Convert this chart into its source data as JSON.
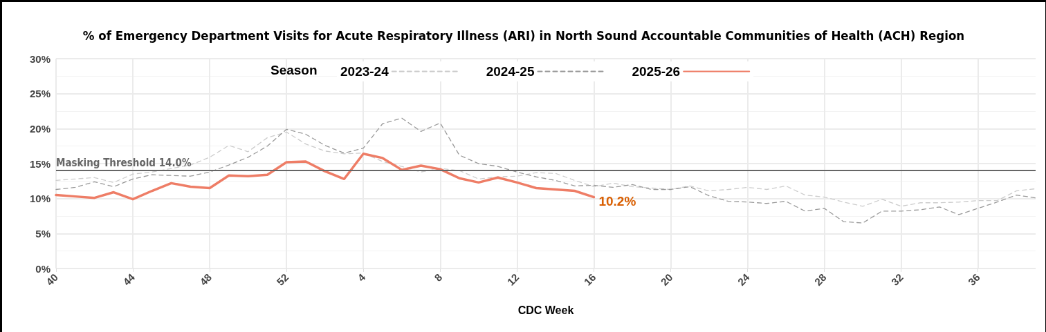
{
  "chart_data": {
    "type": "line",
    "title": "% of Emergency Department Visits for Acute Respiratory Illness (ARI) in North Sound Accountable Communities of Health (ACH) Region",
    "xlabel": "CDC Week",
    "legend_title": "Season",
    "categories": [
      "40",
      null,
      null,
      null,
      "44",
      null,
      null,
      null,
      "48",
      null,
      null,
      null,
      "52",
      null,
      null,
      null,
      "4",
      null,
      null,
      null,
      "8",
      null,
      null,
      null,
      "12",
      null,
      null,
      null,
      "16",
      null,
      null,
      null,
      "20",
      null,
      null,
      null,
      "24",
      null,
      null,
      null,
      "28",
      null,
      null,
      null,
      "32",
      null,
      null,
      null,
      "36",
      null,
      null,
      null
    ],
    "series": [
      {
        "name": "2023-24",
        "color": "#cccccc",
        "line_style": "dashed",
        "values": [
          12.6,
          12.8,
          13.0,
          12.3,
          13.5,
          13.8,
          14.3,
          14.8,
          15.9,
          17.6,
          16.7,
          18.7,
          19.5,
          17.8,
          16.8,
          16.4,
          16.5,
          15.3,
          14.6,
          13.8,
          14.3,
          14.0,
          12.8,
          13.1,
          13.2,
          13.7,
          13.6,
          12.6,
          11.7,
          12.2,
          11.7,
          11.5,
          11.3,
          11.8,
          11.1,
          11.3,
          11.6,
          11.3,
          11.8,
          10.5,
          10.2,
          9.5,
          8.9,
          9.9,
          8.9,
          9.4,
          9.4,
          9.5,
          9.7,
          9.7,
          11.1,
          11.4
        ]
      },
      {
        "name": "2024-25",
        "color": "#999999",
        "line_style": "dashed",
        "values": [
          11.3,
          11.6,
          12.4,
          11.7,
          12.8,
          13.4,
          13.3,
          13.2,
          13.8,
          14.8,
          15.9,
          17.5,
          19.9,
          19.2,
          17.6,
          16.5,
          17.2,
          20.7,
          21.5,
          19.6,
          20.8,
          16.2,
          15.0,
          14.6,
          13.8,
          13.1,
          12.6,
          11.8,
          11.9,
          11.6,
          12.0,
          11.3,
          11.3,
          11.7,
          10.4,
          9.6,
          9.5,
          9.3,
          9.6,
          8.2,
          8.6,
          6.7,
          6.5,
          8.2,
          8.2,
          8.4,
          8.8,
          7.7,
          8.6,
          9.5,
          10.5,
          10.1
        ]
      },
      {
        "name": "2025-26",
        "color": "#ee7d66",
        "line_style": "solid",
        "values": [
          10.5,
          10.3,
          10.1,
          10.9,
          9.9,
          11.1,
          12.2,
          11.7,
          11.5,
          13.3,
          13.2,
          13.4,
          15.2,
          15.3,
          13.9,
          12.8,
          16.4,
          15.8,
          14.1,
          14.7,
          14.2,
          12.9,
          12.3,
          13.0,
          12.3,
          11.5,
          11.3,
          11.1,
          10.2,
          null,
          null,
          null,
          null,
          null,
          null,
          null,
          null,
          null,
          null,
          null,
          null,
          null,
          null,
          null,
          null,
          null,
          null,
          null,
          null,
          null,
          null,
          null
        ]
      }
    ],
    "ylim": [
      0,
      30
    ],
    "yticks": [
      {
        "value": 0,
        "label": "0%"
      },
      {
        "value": 5,
        "label": "5%"
      },
      {
        "value": 10,
        "label": "10%"
      },
      {
        "value": 15,
        "label": "15%"
      },
      {
        "value": 20,
        "label": "20%"
      },
      {
        "value": 25,
        "label": "25%"
      },
      {
        "value": 30,
        "label": "30%"
      }
    ],
    "ref_lines": [
      {
        "axis": "y",
        "value": 14.0,
        "label": "Masking Threshold 14.0%",
        "color": "#666666"
      }
    ],
    "annotations": [
      {
        "text": "10.2%",
        "x": "16",
        "y": 10.2
      }
    ],
    "grid": true,
    "legend": "top",
    "marker": "none"
  }
}
